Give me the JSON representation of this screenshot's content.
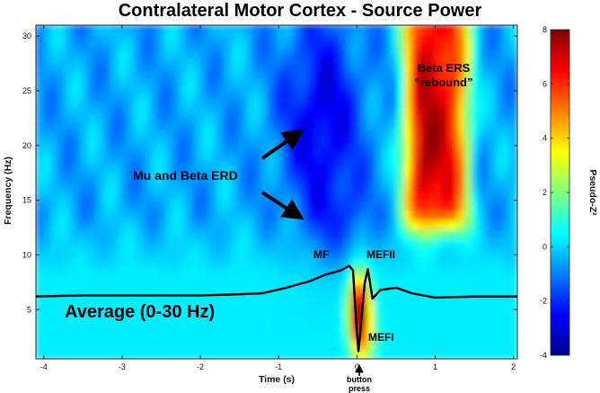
{
  "chart_data": {
    "type": "heatmap",
    "title": "Contralateral Motor Cortex - Source Power",
    "xlabel": "Time (s)",
    "ylabel": "Frequency (Hz)",
    "xlim": [
      -4.1,
      2.05
    ],
    "ylim": [
      0.5,
      31
    ],
    "x_ticks": [
      -4,
      -3,
      -2,
      -1,
      0,
      1,
      2
    ],
    "y_ticks": [
      5,
      10,
      15,
      20,
      25,
      30
    ],
    "colorbar": {
      "label": "Pseudo-Z²",
      "range": [
        -4,
        8
      ],
      "ticks": [
        -4,
        -2,
        0,
        2,
        4,
        6,
        8
      ],
      "colormap": "jet"
    },
    "regions": [
      {
        "name": "Mu and Beta ERD",
        "t_range": [
          -1.2,
          0.4
        ],
        "f_range": [
          9,
          31
        ],
        "value": -3
      },
      {
        "name": "Beta ERS rebound",
        "t_range": [
          0.45,
          1.7
        ],
        "f_range": [
          11,
          31
        ],
        "value": 7
      },
      {
        "name": "MEF",
        "t_range": [
          -0.05,
          0.15
        ],
        "f_range": [
          1,
          9
        ],
        "value": 6.5
      }
    ],
    "series": [
      {
        "name": "Average (0-30 Hz)",
        "points": [
          [
            -4.1,
            6.2
          ],
          [
            -3.5,
            6.3
          ],
          [
            -3.0,
            6.3
          ],
          [
            -2.5,
            6.3
          ],
          [
            -2.0,
            6.3
          ],
          [
            -1.5,
            6.4
          ],
          [
            -1.2,
            6.5
          ],
          [
            -0.9,
            7.0
          ],
          [
            -0.6,
            7.6
          ],
          [
            -0.4,
            8.2
          ],
          [
            -0.2,
            8.6
          ],
          [
            -0.1,
            9.0
          ],
          [
            -0.05,
            8.6
          ],
          [
            0.0,
            3.0
          ],
          [
            0.02,
            1.2
          ],
          [
            0.05,
            3.5
          ],
          [
            0.1,
            7.4
          ],
          [
            0.14,
            8.7
          ],
          [
            0.2,
            6.0
          ],
          [
            0.3,
            6.8
          ],
          [
            0.5,
            7.0
          ],
          [
            0.7,
            6.5
          ],
          [
            1.0,
            6.1
          ],
          [
            1.5,
            6.2
          ],
          [
            2.05,
            6.2
          ]
        ]
      }
    ],
    "annotations": {
      "mu_beta": "Mu and Beta ERD",
      "beta_ers": "Beta ERS",
      "rebound": "“rebound”",
      "average": "Average (0-30 Hz)",
      "mf": "MF",
      "mefi": "MEFI",
      "mefii": "MEFII",
      "button1": "button",
      "button2": "press"
    }
  }
}
